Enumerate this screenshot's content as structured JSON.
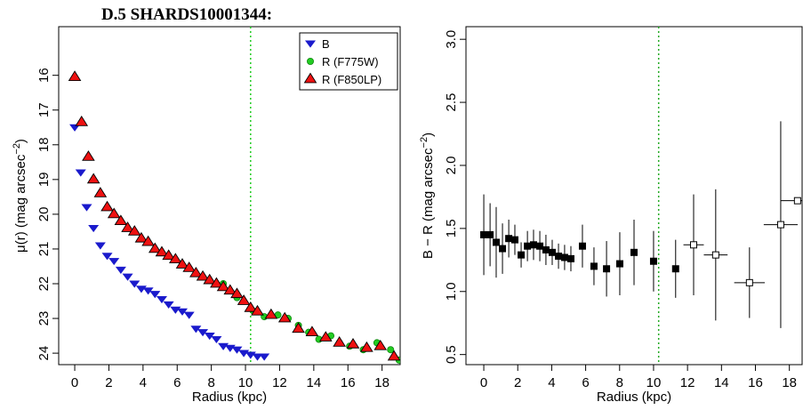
{
  "chart_data": [
    {
      "type": "scatter",
      "title": "D.5 SHARDS10001344:",
      "x_label": "Radius (kpc)",
      "y_label": {
        "text": "μ(r) (mag arcsec",
        "sup": "−2",
        "end": ")"
      },
      "xlim": [
        -0.94,
        19.06
      ],
      "ylim": [
        24.33,
        14.6
      ],
      "xticks": [
        0,
        2,
        4,
        6,
        8,
        10,
        12,
        14,
        16,
        18
      ],
      "yticks": [
        16,
        17,
        18,
        19,
        20,
        21,
        22,
        23,
        24
      ],
      "vline": 10.3,
      "vline_color": "#22cc22",
      "legend": "top-right",
      "series": [
        {
          "name": "B",
          "marker": "triangle-down",
          "color": "#1a1acc",
          "x": [
            0,
            0.35,
            0.7,
            1.1,
            1.5,
            1.9,
            2.3,
            2.7,
            3.1,
            3.5,
            3.9,
            4.3,
            4.7,
            5.1,
            5.5,
            5.9,
            6.3,
            6.7,
            7.1,
            7.5,
            7.9,
            8.3,
            8.7,
            9.1,
            9.5,
            9.9,
            10.3,
            10.7,
            11.1
          ],
          "values": [
            17.5,
            18.8,
            19.8,
            20.4,
            20.9,
            21.2,
            21.35,
            21.6,
            21.8,
            22.0,
            22.15,
            22.2,
            22.3,
            22.45,
            22.6,
            22.75,
            22.8,
            22.9,
            23.3,
            23.4,
            23.5,
            23.6,
            23.8,
            23.85,
            23.9,
            24.0,
            24.05,
            24.1,
            24.1
          ]
        },
        {
          "name": "R (F775W)",
          "marker": "circle",
          "color": "#22cc22",
          "x": [
            8.7,
            9.5,
            10.5,
            11.1,
            11.9,
            12.5,
            13.1,
            13.7,
            14.3,
            15.0,
            15.5,
            16.1,
            16.9,
            17.7,
            18.5,
            19.0
          ],
          "values": [
            22.0,
            22.4,
            22.8,
            22.95,
            22.9,
            23.0,
            23.2,
            23.4,
            23.6,
            23.5,
            23.7,
            23.8,
            23.9,
            23.7,
            23.9,
            24.2
          ]
        },
        {
          "name": "R (F850LP)",
          "marker": "triangle-up",
          "color": "#ee1111",
          "x": [
            0,
            0.4,
            0.8,
            1.1,
            1.5,
            1.9,
            2.3,
            2.7,
            3.1,
            3.5,
            3.9,
            4.3,
            4.7,
            5.1,
            5.5,
            5.9,
            6.3,
            6.7,
            7.1,
            7.5,
            7.9,
            8.3,
            8.7,
            9.1,
            9.5,
            9.9,
            10.3,
            10.7,
            11.5,
            12.3,
            13.1,
            13.9,
            14.7,
            15.5,
            16.3,
            17.1,
            17.9,
            18.7
          ],
          "values": [
            16.05,
            17.35,
            18.35,
            19.0,
            19.4,
            19.8,
            20.0,
            20.2,
            20.4,
            20.5,
            20.7,
            20.8,
            21.0,
            21.1,
            21.2,
            21.3,
            21.45,
            21.55,
            21.7,
            21.8,
            21.9,
            22.0,
            22.1,
            22.2,
            22.3,
            22.5,
            22.7,
            22.8,
            22.9,
            23.0,
            23.3,
            23.4,
            23.55,
            23.7,
            23.75,
            23.85,
            23.8,
            24.1
          ]
        }
      ]
    },
    {
      "type": "scatter",
      "x_label": "Radius (kpc)",
      "y_label": {
        "text": "B − R (mag arcsec",
        "sup": "−2",
        "end": ")"
      },
      "xlim": [
        -1.05,
        18.75
      ],
      "ylim": [
        0.42,
        3.1
      ],
      "xticks": [
        0,
        2,
        4,
        6,
        8,
        10,
        12,
        14,
        16,
        18
      ],
      "yticks": [
        0.5,
        {
          "value": 1,
          "label": "1.0"
        },
        1.5,
        {
          "value": 2,
          "label": "2.0"
        },
        2.5,
        {
          "value": 3,
          "label": "3.0"
        }
      ],
      "vline": 10.3,
      "vline_color": "#22aa22",
      "series": [
        {
          "marker": "square",
          "filled": true,
          "color": "#000000",
          "x": [
            0,
            0.37,
            0.73,
            1.1,
            1.47,
            1.83,
            2.2,
            2.57,
            2.93,
            3.3,
            3.66,
            4.03,
            4.4,
            4.76,
            5.13,
            5.81,
            6.49,
            7.23,
            8.01,
            8.85,
            10.0,
            11.3
          ],
          "values": [
            1.45,
            1.45,
            1.39,
            1.34,
            1.42,
            1.41,
            1.29,
            1.36,
            1.37,
            1.36,
            1.33,
            1.31,
            1.28,
            1.27,
            1.26,
            1.36,
            1.2,
            1.18,
            1.22,
            1.31,
            1.24,
            1.18
          ],
          "errors": [
            0.32,
            0.25,
            0.28,
            0.2,
            0.15,
            0.12,
            0.1,
            0.12,
            0.12,
            0.12,
            0.12,
            0.1,
            0.1,
            0.1,
            0.1,
            0.17,
            0.15,
            0.22,
            0.25,
            0.26,
            0.24,
            0.23
          ]
        },
        {
          "marker": "square",
          "filled": false,
          "color": "#000000",
          "x": [
            12.36,
            13.66,
            15.65,
            17.49,
            18.48
          ],
          "values": [
            1.37,
            1.29,
            1.07,
            1.53,
            1.72
          ],
          "errors": [
            0.4,
            0.52,
            0.28,
            0.82,
            null
          ],
          "xerrors": [
            0.6,
            0.7,
            0.9,
            1.0,
            1.0
          ]
        }
      ]
    }
  ]
}
